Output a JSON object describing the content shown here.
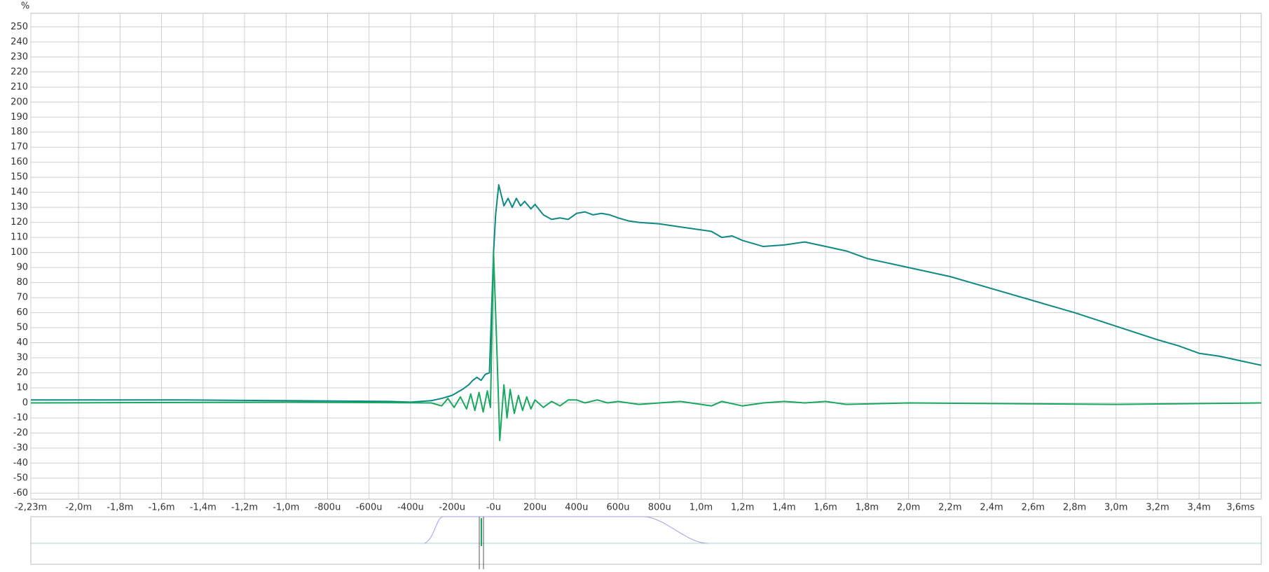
{
  "chart_data": {
    "type": "line",
    "y_label": "%",
    "xlim": [
      -2.23,
      3.7
    ],
    "ylim": [
      -64,
      259
    ],
    "grid": true,
    "xticks": [
      {
        "value": -2.23,
        "label": "-2,23m"
      },
      {
        "value": -2.0,
        "label": "-2,0m"
      },
      {
        "value": -1.8,
        "label": "-1,8m"
      },
      {
        "value": -1.6,
        "label": "-1,6m"
      },
      {
        "value": -1.4,
        "label": "-1,4m"
      },
      {
        "value": -1.2,
        "label": "-1,2m"
      },
      {
        "value": -1.0,
        "label": "-1,0m"
      },
      {
        "value": -0.8,
        "label": "-800u"
      },
      {
        "value": -0.6,
        "label": "-600u"
      },
      {
        "value": -0.4,
        "label": "-400u"
      },
      {
        "value": -0.2,
        "label": "-200u"
      },
      {
        "value": 0,
        "label": "-0u"
      },
      {
        "value": 0.2,
        "label": "200u"
      },
      {
        "value": 0.4,
        "label": "400u"
      },
      {
        "value": 0.6,
        "label": "600u"
      },
      {
        "value": 0.8,
        "label": "800u"
      },
      {
        "value": 1.0,
        "label": "1,0m"
      },
      {
        "value": 1.2,
        "label": "1,2m"
      },
      {
        "value": 1.4,
        "label": "1,4m"
      },
      {
        "value": 1.6,
        "label": "1,6m"
      },
      {
        "value": 1.8,
        "label": "1,8m"
      },
      {
        "value": 2.0,
        "label": "2,0m"
      },
      {
        "value": 2.2,
        "label": "2,2m"
      },
      {
        "value": 2.4,
        "label": "2,4m"
      },
      {
        "value": 2.6,
        "label": "2,6m"
      },
      {
        "value": 2.8,
        "label": "2,8m"
      },
      {
        "value": 3.0,
        "label": "3,0m"
      },
      {
        "value": 3.2,
        "label": "3,2m"
      },
      {
        "value": 3.4,
        "label": "3,4m"
      },
      {
        "value": 3.6,
        "label": "3,6ms"
      }
    ],
    "yticks": [
      -60,
      -50,
      -40,
      -30,
      -20,
      -10,
      0,
      10,
      20,
      30,
      40,
      50,
      60,
      70,
      80,
      90,
      100,
      110,
      120,
      130,
      140,
      150,
      160,
      170,
      180,
      190,
      200,
      210,
      220,
      230,
      240,
      250
    ],
    "series": [
      {
        "color": "#0e8a82",
        "x": [
          -2.23,
          -1.5,
          -1.0,
          -0.5,
          -0.4,
          -0.3,
          -0.25,
          -0.2,
          -0.15,
          -0.12,
          -0.1,
          -0.08,
          -0.06,
          -0.04,
          -0.02,
          0,
          0.01,
          0.025,
          0.05,
          0.07,
          0.09,
          0.11,
          0.13,
          0.15,
          0.18,
          0.2,
          0.24,
          0.28,
          0.32,
          0.36,
          0.4,
          0.44,
          0.48,
          0.52,
          0.56,
          0.6,
          0.65,
          0.7,
          0.8,
          0.9,
          1.0,
          1.05,
          1.1,
          1.15,
          1.2,
          1.3,
          1.4,
          1.5,
          1.6,
          1.7,
          1.8,
          1.9,
          2.0,
          2.2,
          2.4,
          2.6,
          2.8,
          3.0,
          3.2,
          3.3,
          3.4,
          3.5,
          3.7
        ],
        "values": [
          2,
          2,
          1.5,
          1,
          0.5,
          1.5,
          3,
          5,
          9,
          12,
          15,
          17,
          15,
          19,
          20,
          100,
          125,
          145,
          131,
          136,
          130,
          136,
          131,
          134,
          129,
          132,
          125,
          122,
          123,
          122,
          126,
          127,
          125,
          126,
          125,
          123,
          121,
          120,
          119,
          117,
          115,
          114,
          110,
          111,
          108,
          104,
          105,
          107,
          104,
          101,
          96,
          93,
          90,
          84,
          76,
          68,
          60,
          51,
          42,
          38,
          33,
          31,
          25
        ]
      },
      {
        "color": "#18a860",
        "x": [
          -2.23,
          -1.0,
          -0.3,
          -0.25,
          -0.22,
          -0.19,
          -0.16,
          -0.13,
          -0.11,
          -0.09,
          -0.07,
          -0.05,
          -0.03,
          -0.015,
          0,
          0.015,
          0.03,
          0.05,
          0.065,
          0.08,
          0.1,
          0.12,
          0.14,
          0.16,
          0.18,
          0.2,
          0.24,
          0.28,
          0.32,
          0.36,
          0.4,
          0.44,
          0.5,
          0.55,
          0.6,
          0.7,
          0.8,
          0.9,
          1.0,
          1.05,
          1.1,
          1.2,
          1.3,
          1.4,
          1.5,
          1.6,
          1.7,
          2.0,
          3.0,
          3.7
        ],
        "values": [
          0,
          0.5,
          0,
          -2,
          3,
          -3,
          4,
          -4,
          6,
          -5,
          7,
          -6,
          8,
          -3,
          100,
          40,
          -25,
          12,
          -10,
          9,
          -7,
          5,
          -5,
          4,
          -4,
          2,
          -3,
          1,
          -2,
          2,
          2,
          0,
          2,
          0,
          1,
          -1,
          0,
          1,
          -1,
          -2,
          1,
          -2,
          0,
          1,
          0,
          1,
          -1,
          0,
          -1,
          0
        ]
      }
    ]
  }
}
